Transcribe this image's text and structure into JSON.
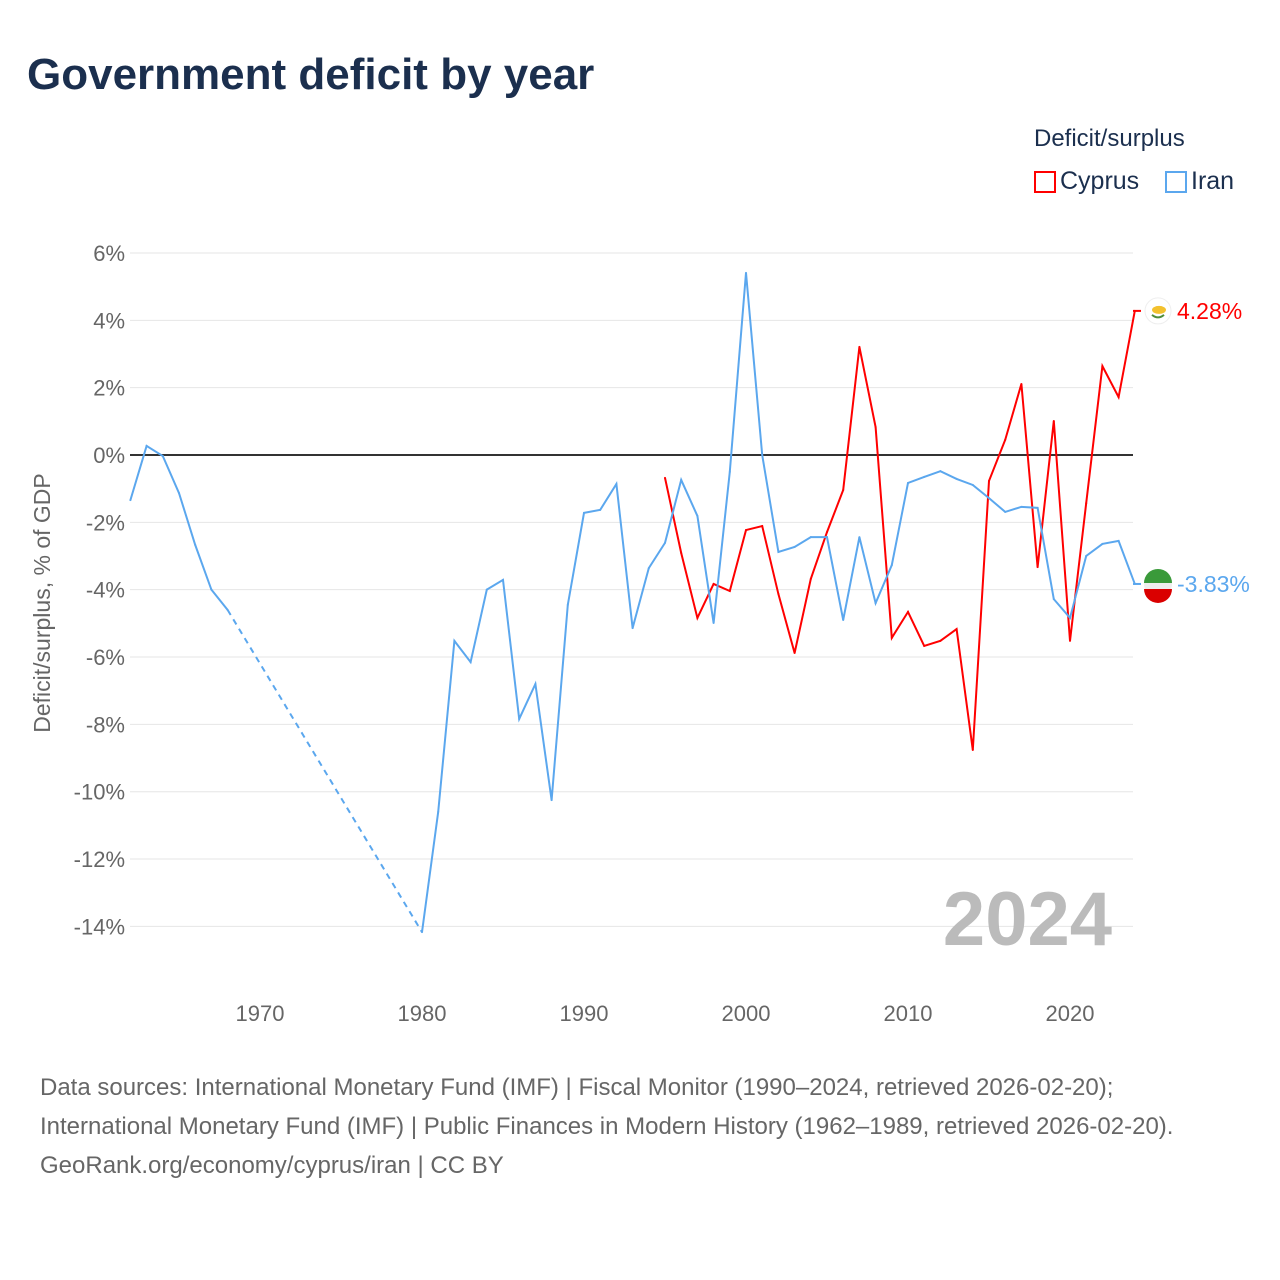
{
  "title": "Government deficit by year",
  "legend": {
    "title": "Deficit/surplus",
    "items": [
      {
        "name": "Cyprus",
        "color": "#ff0000"
      },
      {
        "name": "Iran",
        "color": "#5ba7ee"
      }
    ]
  },
  "footer": {
    "sources": "Data sources: International Monetary Fund (IMF) | Fiscal Monitor (1990–2024, retrieved 2026-02-20); International Monetary Fund (IMF) | Public Finances in Modern History (1962–1989, retrieved 2026-02-20).",
    "credit": "GeoRank.org/economy/cyprus/iran | CC BY"
  },
  "chart_data": {
    "type": "line",
    "title": "Government deficit by year",
    "xlabel": "",
    "ylabel": "Deficit/surplus, % of GDP",
    "xlim": [
      1962,
      2024
    ],
    "ylim": [
      -15,
      6.5
    ],
    "xticks": [
      1970,
      1980,
      1990,
      2000,
      2010,
      2020
    ],
    "yticks": [
      6,
      4,
      2,
      0,
      -2,
      -4,
      -6,
      -8,
      -10,
      -12,
      -14
    ],
    "ytick_labels": [
      "6%",
      "4%",
      "2%",
      "0%",
      "-2%",
      "-4%",
      "-6%",
      "-8%",
      "-10%",
      "-12%",
      "-14%"
    ],
    "year_label": "2024",
    "series": [
      {
        "name": "Cyprus",
        "color": "#ff0000",
        "end_label": "4.28%",
        "x": [
          1995,
          1996,
          1997,
          1998,
          1999,
          2000,
          2001,
          2002,
          2003,
          2004,
          2005,
          2006,
          2007,
          2008,
          2009,
          2010,
          2011,
          2012,
          2013,
          2014,
          2015,
          2016,
          2017,
          2018,
          2019,
          2020,
          2021,
          2022,
          2023,
          2024
        ],
        "y": [
          -0.68,
          -2.91,
          -4.84,
          -3.83,
          -4.04,
          -2.23,
          -2.11,
          -4.13,
          -5.88,
          -3.68,
          -2.29,
          -1.04,
          3.21,
          0.83,
          -5.43,
          -4.66,
          -5.67,
          -5.52,
          -5.17,
          -8.76,
          -0.77,
          0.45,
          2.11,
          -3.33,
          1.01,
          -5.52,
          -1.43,
          2.64,
          1.72,
          4.28
        ]
      },
      {
        "name": "Iran",
        "color": "#5ba7ee",
        "end_label": "-3.83%",
        "gap_after": 1968,
        "x": [
          1962,
          1963,
          1964,
          1965,
          1966,
          1967,
          1968,
          1980,
          1981,
          1982,
          1983,
          1984,
          1985,
          1986,
          1987,
          1988,
          1989,
          1990,
          1991,
          1992,
          1993,
          1994,
          1995,
          1996,
          1997,
          1998,
          1999,
          2000,
          2001,
          2002,
          2003,
          2004,
          2005,
          2006,
          2007,
          2008,
          2009,
          2010,
          2011,
          2012,
          2013,
          2014,
          2015,
          2016,
          2017,
          2018,
          2019,
          2020,
          2021,
          2022,
          2023,
          2024
        ],
        "y": [
          -1.34,
          0.27,
          -0.03,
          -1.13,
          -2.67,
          -4.0,
          -4.6,
          -14.17,
          -10.6,
          -5.52,
          -6.15,
          -4.0,
          -3.71,
          -7.84,
          -6.8,
          -10.25,
          -4.45,
          -1.72,
          -1.63,
          -0.86,
          -5.14,
          -3.36,
          -2.61,
          -0.74,
          -1.81,
          -4.99,
          -0.5,
          5.41,
          0.0,
          -2.88,
          -2.73,
          -2.44,
          -2.44,
          -4.9,
          -2.44,
          -4.4,
          -3.27,
          -0.83,
          -0.65,
          -0.48,
          -0.71,
          -0.89,
          -1.28,
          -1.69,
          -1.54,
          -1.57,
          -4.28,
          -4.84,
          -3.0,
          -2.64,
          -2.55,
          -3.83
        ]
      }
    ]
  }
}
